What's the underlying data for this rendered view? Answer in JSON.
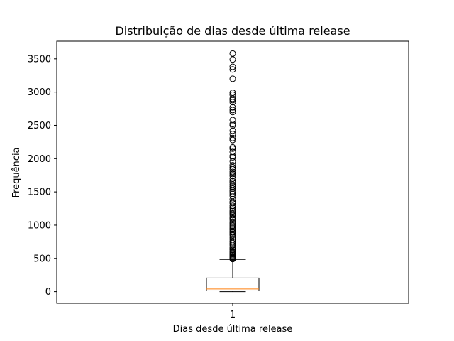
{
  "chart_data": {
    "type": "boxplot",
    "title": "Distribuição de dias desde última release",
    "xlabel": "Dias desde última release",
    "ylabel": "Frequência",
    "categories": [
      "1"
    ],
    "ylim": [
      -175,
      3765
    ],
    "yticks": [
      0,
      500,
      1000,
      1500,
      2000,
      2500,
      3000,
      3500
    ],
    "grid": false,
    "colors": {
      "box": "#000000",
      "median": "#ff7f0e",
      "outlier": "#000000"
    },
    "box": {
      "whisker_low": 0,
      "q1": 12,
      "median": 40,
      "q3": 205,
      "whisker_high": 485
    },
    "outliers": [
      490,
      500,
      510,
      520,
      535,
      550,
      565,
      580,
      595,
      610,
      630,
      650,
      670,
      700,
      730,
      760,
      790,
      820,
      850,
      870,
      890,
      910,
      930,
      950,
      970,
      990,
      1010,
      1030,
      1050,
      1080,
      1100,
      1120,
      1150,
      1170,
      1190,
      1210,
      1230,
      1260,
      1290,
      1330,
      1350,
      1390,
      1440,
      1470,
      1500,
      1520,
      1550,
      1580,
      1610,
      1640,
      1660,
      1700,
      1740,
      1770,
      1800,
      1840,
      1870,
      1900,
      1960,
      2020,
      2040,
      2100,
      2150,
      2170,
      2280,
      2310,
      2370,
      2420,
      2500,
      2520,
      2580,
      2700,
      2730,
      2770,
      2850,
      2880,
      2900,
      2960,
      2990,
      3200,
      3340,
      3380,
      3490,
      3580
    ]
  }
}
